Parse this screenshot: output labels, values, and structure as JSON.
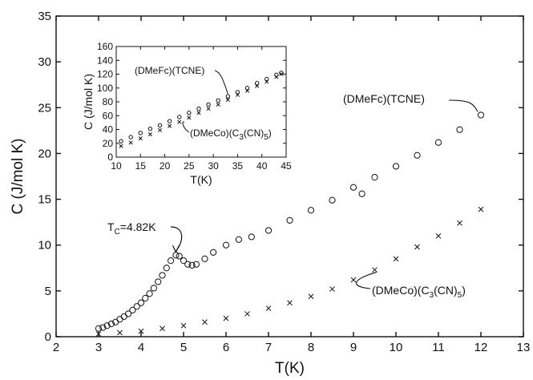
{
  "chart_data": [
    {
      "type": "scatter",
      "title": "",
      "xlabel": "T(K)",
      "ylabel": "C (J/mol K)",
      "xlim": [
        2,
        13
      ],
      "ylim": [
        0,
        35
      ],
      "x_ticks": [
        "2",
        "3",
        "4",
        "5",
        "6",
        "7",
        "8",
        "9",
        "10",
        "11",
        "12",
        "13"
      ],
      "y_ticks": [
        "0",
        "5",
        "10",
        "15",
        "20",
        "25",
        "30",
        "35"
      ],
      "grid": false,
      "annotations": {
        "tc": "T",
        "tc_sub": "C",
        "tc_value": "=4.82K",
        "tc_x": 4.82,
        "tc_y": 8.9
      },
      "series": [
        {
          "name": "(DMeFc)(TCNE)",
          "marker": "circle",
          "label_parts": [
            "(DMeFc)(TCNE)"
          ],
          "x": [
            3.0,
            3.1,
            3.2,
            3.3,
            3.4,
            3.5,
            3.6,
            3.7,
            3.8,
            3.9,
            4.0,
            4.1,
            4.2,
            4.3,
            4.4,
            4.5,
            4.6,
            4.7,
            4.82,
            4.9,
            5.0,
            5.1,
            5.2,
            5.3,
            5.5,
            5.7,
            6.0,
            6.3,
            6.6,
            7.0,
            7.5,
            8.0,
            8.5,
            9.0,
            9.2,
            9.5,
            10.0,
            10.5,
            11.0,
            11.5,
            12.0
          ],
          "y": [
            0.9,
            1.0,
            1.2,
            1.4,
            1.6,
            1.9,
            2.2,
            2.5,
            2.9,
            3.3,
            3.7,
            4.2,
            4.7,
            5.3,
            6.0,
            6.7,
            7.5,
            8.3,
            8.9,
            8.8,
            8.3,
            7.9,
            7.8,
            7.9,
            8.5,
            9.2,
            10.0,
            10.6,
            10.9,
            11.6,
            12.7,
            13.8,
            14.9,
            16.3,
            15.6,
            17.4,
            18.6,
            19.8,
            21.2,
            22.6,
            24.2
          ]
        },
        {
          "name": "(DMeCo)(C3(CN)5)",
          "marker": "x",
          "label_parts": [
            "(DMeCo)(C",
            "3",
            "(CN)",
            "5",
            ")"
          ],
          "x": [
            3.0,
            3.5,
            4.0,
            4.5,
            5.0,
            5.5,
            6.0,
            6.5,
            7.0,
            7.5,
            8.0,
            8.5,
            9.0,
            9.5,
            10.0,
            10.5,
            11.0,
            11.5,
            12.0
          ],
          "y": [
            0.3,
            0.45,
            0.6,
            0.9,
            1.2,
            1.6,
            2.0,
            2.5,
            3.1,
            3.7,
            4.4,
            5.2,
            6.2,
            7.3,
            8.5,
            9.8,
            11.0,
            12.4,
            13.9
          ]
        }
      ]
    },
    {
      "type": "scatter",
      "title": "",
      "xlabel": "T(K)",
      "ylabel": "C (J/mol K)",
      "xlim": [
        10,
        45
      ],
      "ylim": [
        0,
        160
      ],
      "x_ticks": [
        "10",
        "15",
        "20",
        "25",
        "30",
        "35",
        "40",
        "45"
      ],
      "y_ticks": [
        "0",
        "20",
        "40",
        "60",
        "80",
        "100",
        "120",
        "140",
        "160"
      ],
      "grid": false,
      "series": [
        {
          "name": "(DMeFc)(TCNE)",
          "marker": "circle",
          "label_parts": [
            "(DMeFc)(TCNE)"
          ],
          "x": [
            11,
            13,
            15,
            17,
            19,
            21,
            23,
            25,
            27,
            29,
            31,
            33,
            35,
            37,
            39,
            41,
            43,
            44
          ],
          "y": [
            23,
            29,
            35,
            41,
            46,
            52,
            58,
            64,
            70,
            76,
            82,
            88,
            94,
            100,
            107,
            113,
            119,
            122
          ]
        },
        {
          "name": "(DMeCo)(C3(CN)5)",
          "marker": "x",
          "label_parts": [
            "(DMeCo)(C",
            "3",
            "(CN)",
            "5",
            ")"
          ],
          "x": [
            11,
            13,
            15,
            17,
            19,
            21,
            23,
            25,
            27,
            29,
            31,
            33,
            35,
            37,
            39,
            41,
            43,
            44
          ],
          "y": [
            16,
            21,
            27,
            33,
            39,
            45,
            51,
            57,
            64,
            70,
            76,
            83,
            90,
            96,
            103,
            109,
            116,
            120
          ]
        }
      ]
    }
  ]
}
